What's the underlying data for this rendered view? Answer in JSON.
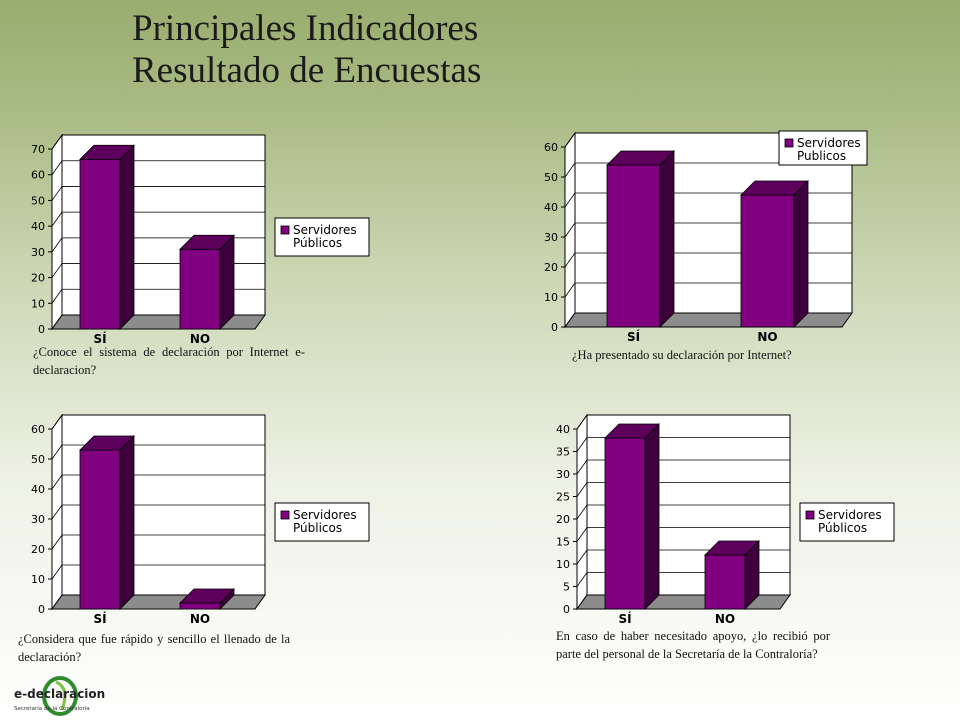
{
  "slide": {
    "title_line1": "Principales Indicadores",
    "title_line2": "Resultado de Encuestas"
  },
  "colors": {
    "bar_front": "#800080",
    "bar_side": "#3d003d",
    "bar_top": "#5c005c",
    "floor": "#8c8c8c"
  },
  "chart_data": [
    {
      "type": "bar",
      "categories": [
        "SÍ",
        "NO"
      ],
      "series": [
        {
          "name": "Servidores Públicos",
          "values": [
            66,
            31
          ]
        }
      ],
      "legend_lines": [
        "Servidores",
        "Públicos"
      ],
      "ylim": [
        0,
        70
      ],
      "yticks": [
        0,
        10,
        20,
        30,
        40,
        50,
        60,
        70
      ],
      "grid": true,
      "legend": "right",
      "caption": "¿Conoce el sistema de declaración por Internet e-declaracion?"
    },
    {
      "type": "bar",
      "categories": [
        "SÍ",
        "NO"
      ],
      "series": [
        {
          "name": "Servidores Publicos",
          "values": [
            54,
            44
          ]
        }
      ],
      "legend_lines": [
        "Servidores",
        "Publicos"
      ],
      "ylim": [
        0,
        60
      ],
      "yticks": [
        0,
        10,
        20,
        30,
        40,
        50,
        60
      ],
      "grid": true,
      "legend": "top-right",
      "caption": "¿Ha presentado su declaración por Internet?"
    },
    {
      "type": "bar",
      "categories": [
        "SÍ",
        "NO"
      ],
      "series": [
        {
          "name": "Servidores Públicos",
          "values": [
            53,
            2
          ]
        }
      ],
      "legend_lines": [
        "Servidores",
        "Públicos"
      ],
      "ylim": [
        0,
        60
      ],
      "yticks": [
        0,
        10,
        20,
        30,
        40,
        50,
        60
      ],
      "grid": true,
      "legend": "right",
      "caption": "¿Considera que fue rápido y sencillo el llenado de la declaración?"
    },
    {
      "type": "bar",
      "categories": [
        "SÍ",
        "NO"
      ],
      "series": [
        {
          "name": "Servidores Públicos",
          "values": [
            38,
            12
          ]
        }
      ],
      "legend_lines": [
        "Servidores",
        "Públicos"
      ],
      "ylim": [
        0,
        40
      ],
      "yticks": [
        0,
        5,
        10,
        15,
        20,
        25,
        30,
        35,
        40
      ],
      "grid": true,
      "legend": "right",
      "caption": "En caso de haber necesitado apoyo, ¿lo recibió por parte del personal de la Secretaría de la Contraloría?"
    }
  ],
  "logo": {
    "brand": "e-declaracion",
    "subtitle": "Secretaría de la Contraloría"
  }
}
